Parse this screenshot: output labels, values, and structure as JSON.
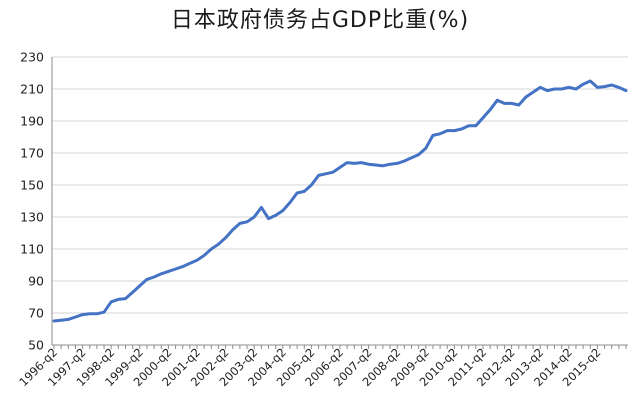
{
  "chart_data": {
    "type": "line",
    "title": "日本政府债务占GDP比重(%)",
    "xlabel": "",
    "ylabel": "",
    "ylim": [
      50,
      230
    ],
    "yticks": [
      50,
      70,
      90,
      110,
      130,
      150,
      170,
      190,
      210,
      230
    ],
    "x_tick_labels": [
      "1996-q2",
      "1997-q2",
      "1998-q2",
      "1999-q2",
      "2000-q2",
      "2001-q2",
      "2002-q2",
      "2003-q2",
      "2004-q2",
      "2005-q2",
      "2006-q2",
      "2007-q2",
      "2008-q2",
      "2009-q2",
      "2010-q2",
      "2011-q2",
      "2012-q2",
      "2013-q2",
      "2014-q2",
      "2015-q2"
    ],
    "grid": "horizontal",
    "legend": "none",
    "series_color": "#4472C4",
    "series": [
      {
        "values": [
          65,
          65.5,
          66,
          67.5,
          69,
          69.5,
          69.5,
          70.5,
          77,
          78.5,
          79,
          83,
          87,
          91,
          92.5,
          94.5,
          96,
          97.5,
          99,
          101,
          103,
          106,
          110,
          113,
          117,
          122,
          126,
          127,
          130,
          136,
          129,
          131,
          134,
          139,
          145,
          146,
          150,
          156,
          157,
          158,
          161,
          164,
          163.5,
          164,
          163,
          162.5,
          162,
          163,
          163.5,
          165,
          167,
          169,
          173,
          181,
          182,
          184,
          184,
          185,
          187,
          187,
          192,
          197,
          203,
          201,
          201,
          200,
          205,
          208,
          211,
          209,
          210,
          210,
          211,
          210,
          213,
          215,
          211,
          211.5,
          212.5,
          211,
          209
        ]
      }
    ]
  }
}
